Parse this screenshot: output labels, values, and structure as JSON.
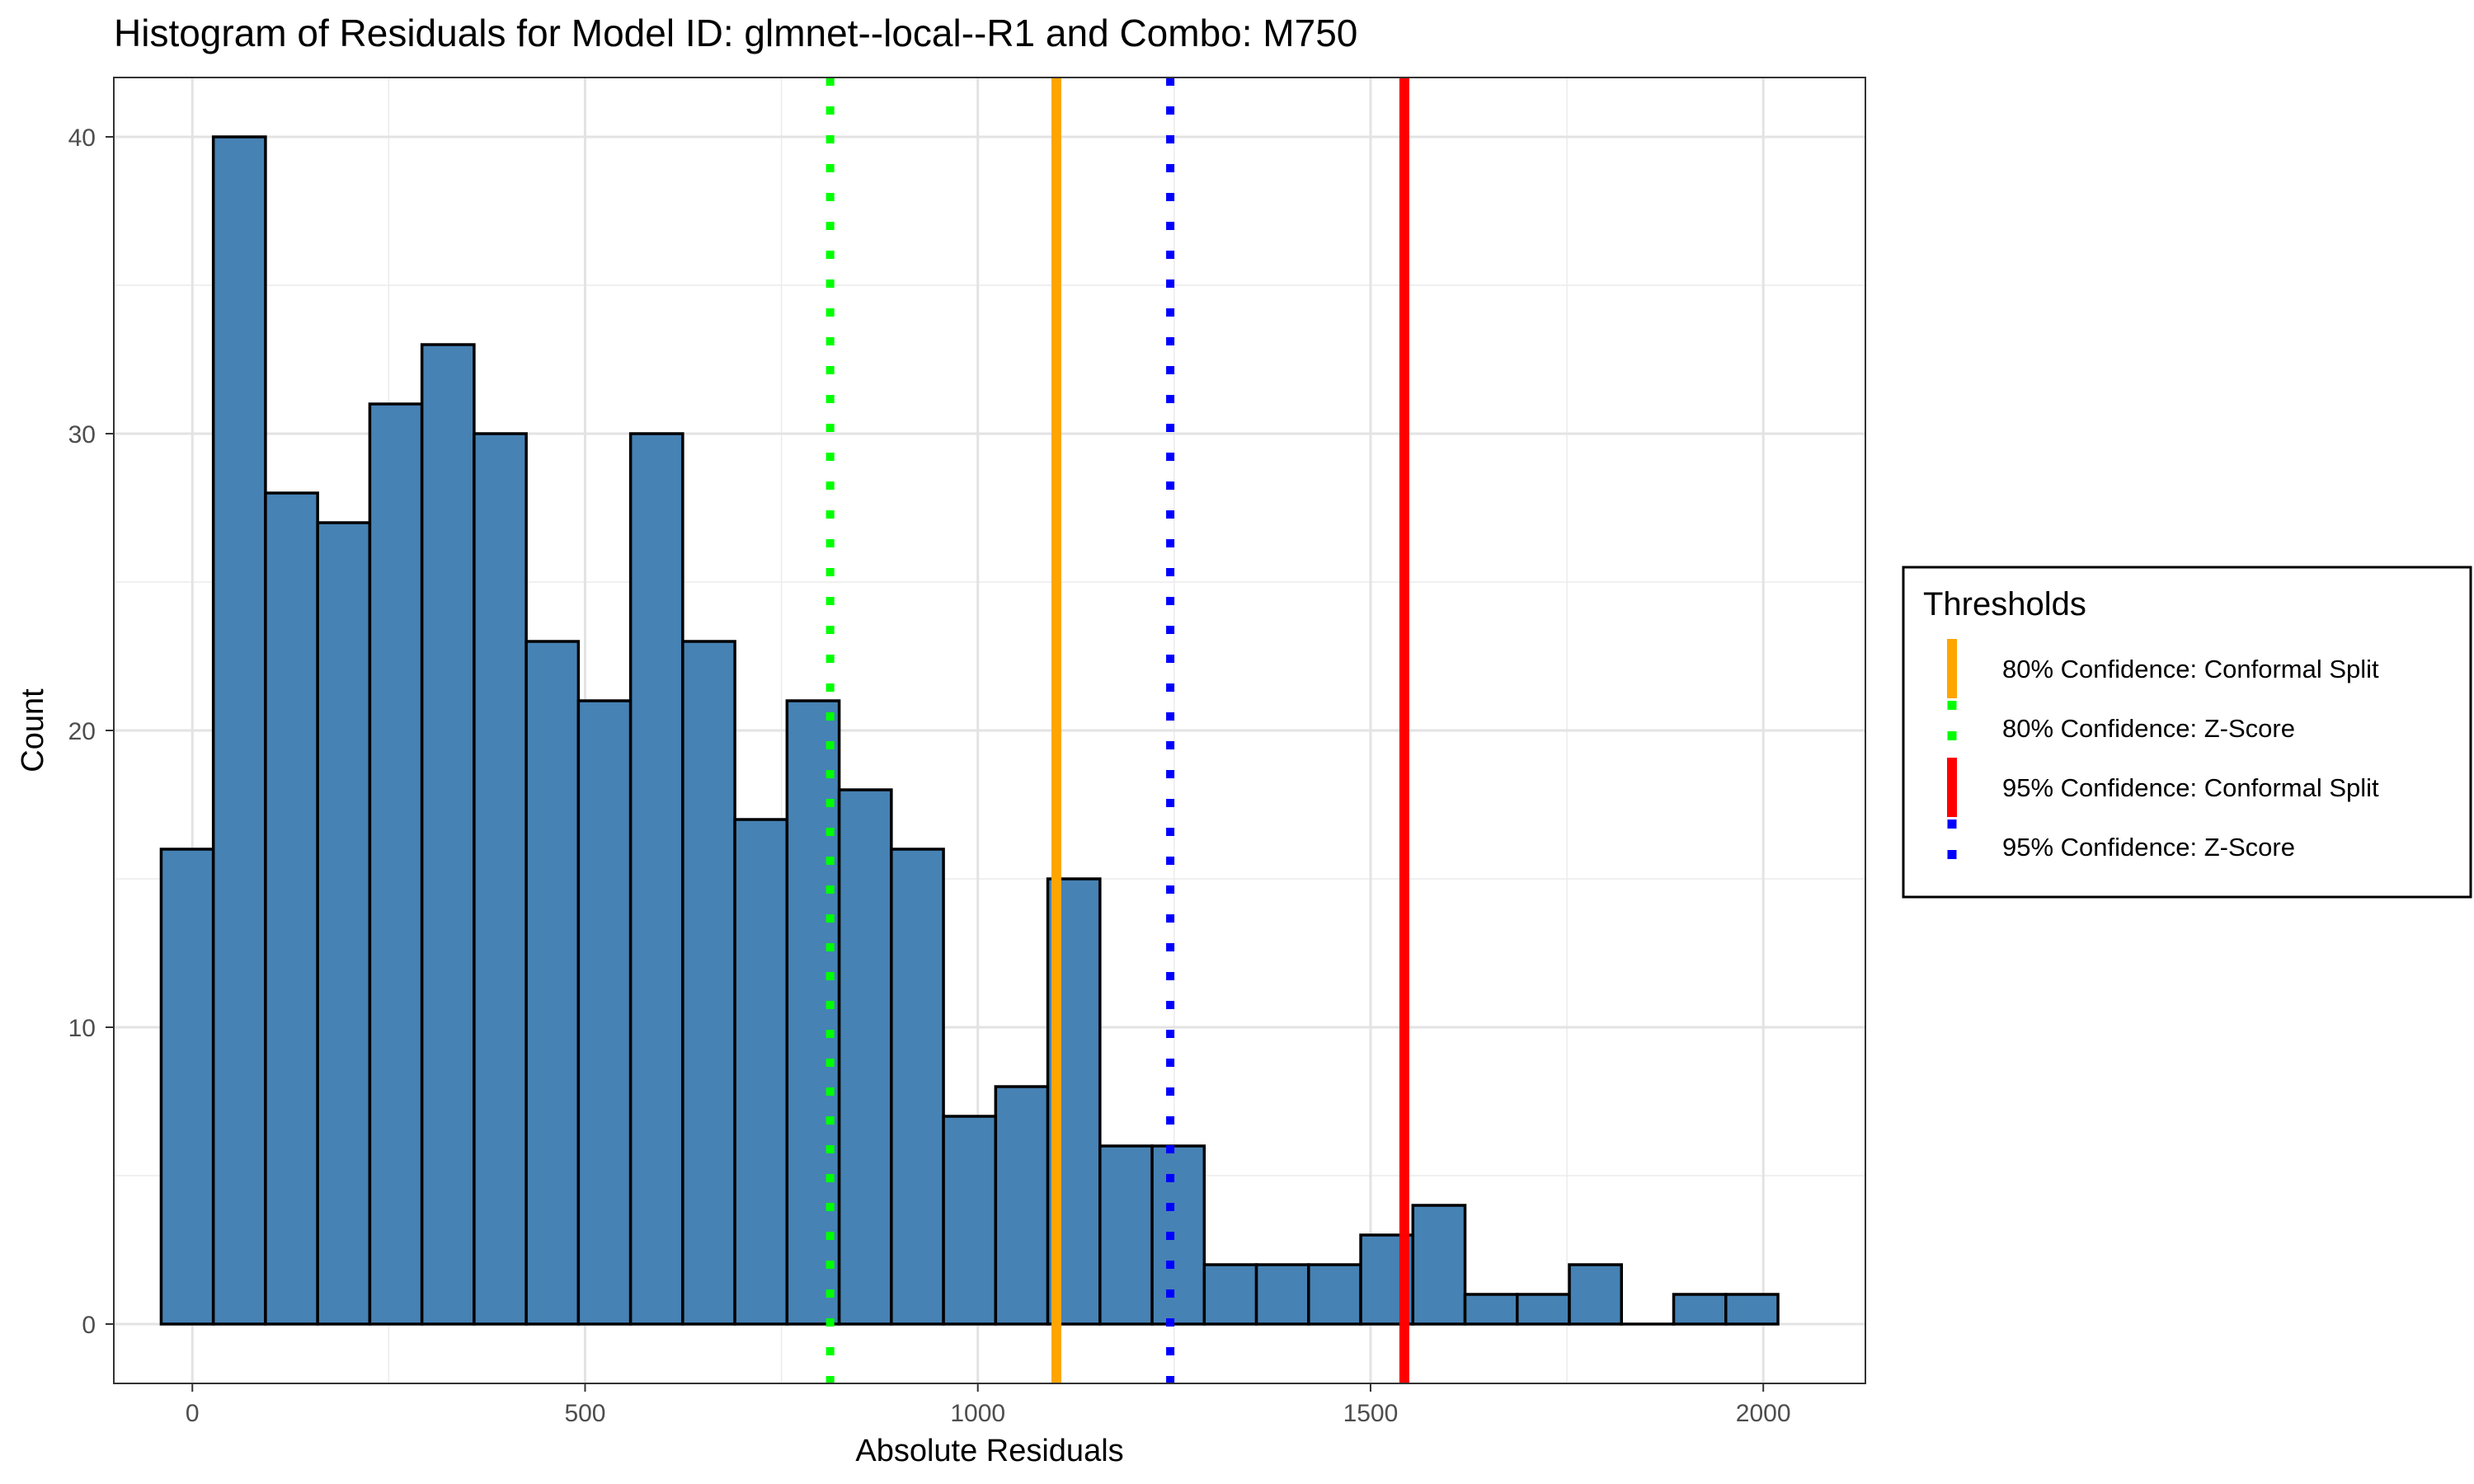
{
  "chart_data": {
    "type": "bar",
    "title": "Histogram of Residuals for Model ID: glmnet--local--R1 and Combo: M750",
    "xlabel": "Absolute Residuals",
    "ylabel": "Count",
    "x_ticks": [
      0,
      500,
      1000,
      1500,
      2000
    ],
    "y_ticks": [
      0,
      10,
      20,
      30,
      40
    ],
    "xlim": [
      -100,
      2130
    ],
    "ylim": [
      -2,
      42
    ],
    "bin_width": 66.4,
    "bins": [
      {
        "center": -6.5,
        "count": 16
      },
      {
        "center": 59.9,
        "count": 40
      },
      {
        "center": 126.3,
        "count": 28
      },
      {
        "center": 192.7,
        "count": 27
      },
      {
        "center": 259.1,
        "count": 31
      },
      {
        "center": 325.5,
        "count": 33
      },
      {
        "center": 391.9,
        "count": 30
      },
      {
        "center": 458.3,
        "count": 23
      },
      {
        "center": 524.7,
        "count": 21
      },
      {
        "center": 591.1,
        "count": 30
      },
      {
        "center": 657.5,
        "count": 23
      },
      {
        "center": 723.9,
        "count": 17
      },
      {
        "center": 790.3,
        "count": 21
      },
      {
        "center": 856.7,
        "count": 18
      },
      {
        "center": 923.1,
        "count": 16
      },
      {
        "center": 989.5,
        "count": 7
      },
      {
        "center": 1055.9,
        "count": 8
      },
      {
        "center": 1122.3,
        "count": 15
      },
      {
        "center": 1188.7,
        "count": 6
      },
      {
        "center": 1255.1,
        "count": 6
      },
      {
        "center": 1321.5,
        "count": 2
      },
      {
        "center": 1387.9,
        "count": 2
      },
      {
        "center": 1454.3,
        "count": 2
      },
      {
        "center": 1520.7,
        "count": 3
      },
      {
        "center": 1587.1,
        "count": 4
      },
      {
        "center": 1653.5,
        "count": 1
      },
      {
        "center": 1719.9,
        "count": 1
      },
      {
        "center": 1786.3,
        "count": 2
      },
      {
        "center": 1852.7,
        "count": 0
      },
      {
        "center": 1919.1,
        "count": 1
      },
      {
        "center": 1985.5,
        "count": 1
      }
    ],
    "bar_fill": "#4682B4",
    "bar_outline": "#000000",
    "grid": true,
    "thresholds": [
      {
        "name": "80% Confidence: Conformal Split",
        "x": 1100,
        "color": "#FFA500",
        "style": "solid"
      },
      {
        "name": "80% Confidence: Z-Score",
        "x": 812,
        "color": "#00FF00",
        "style": "dotted"
      },
      {
        "name": "95% Confidence: Conformal Split",
        "x": 1543,
        "color": "#FF0000",
        "style": "solid"
      },
      {
        "name": "95% Confidence: Z-Score",
        "x": 1245,
        "color": "#0000FF",
        "style": "dotted"
      }
    ],
    "legend": {
      "title": "Thresholds",
      "position": "right"
    }
  }
}
